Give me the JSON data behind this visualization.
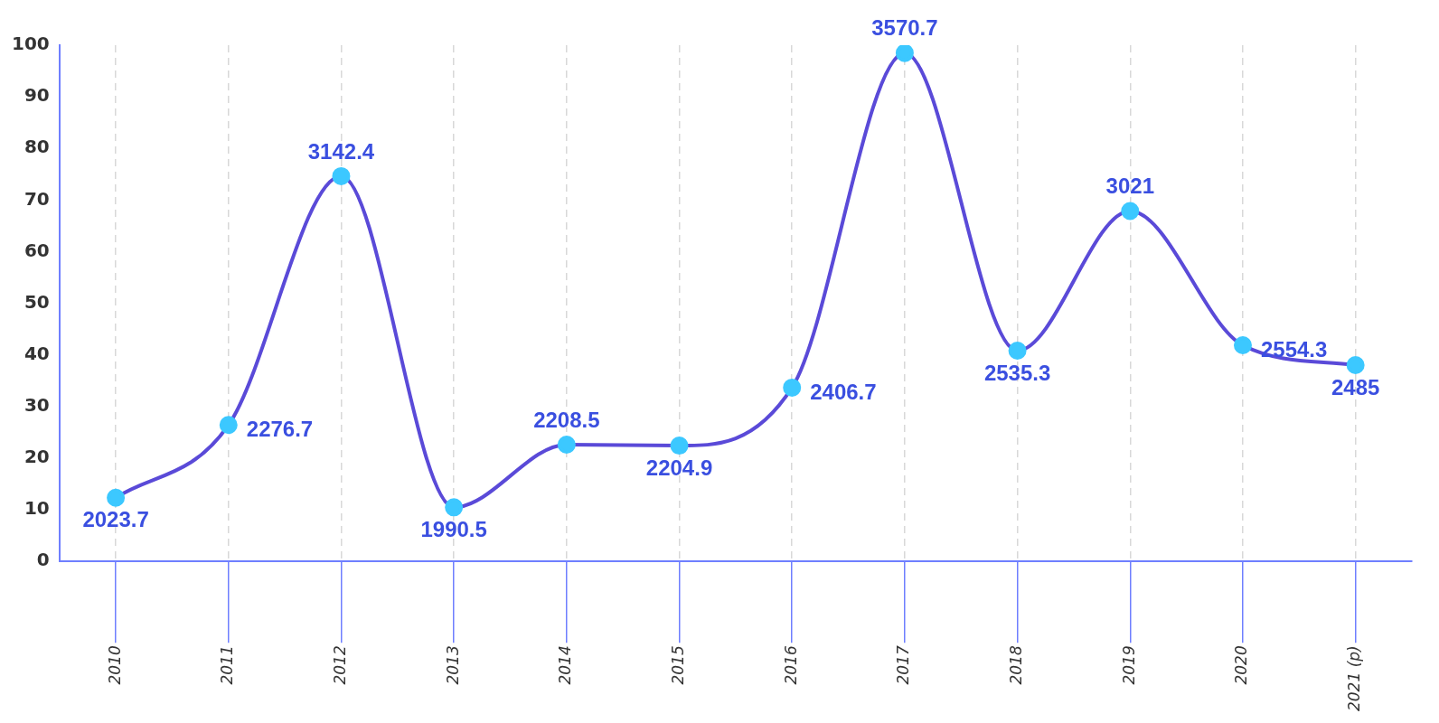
{
  "chart_data": {
    "type": "line",
    "categories": [
      "2010",
      "2011",
      "2012",
      "2013",
      "2014",
      "2015",
      "2016",
      "2017",
      "2018",
      "2019",
      "2020",
      "2021 (p)"
    ],
    "series": [
      {
        "color": "#5a4ad8",
        "colors": [
          "#3cc8ff",
          "#3cc8ff",
          "#3cc8ff",
          "#3cc8ff",
          "#3cc8ff",
          "#3cc8ff",
          "#3cc8ff",
          "#3cc8ff",
          "#3cc8ff",
          "#3cc8ff",
          "#3cc8ff",
          "#3cc8ff"
        ],
        "values": [
          2023.7,
          2276.7,
          3142.4,
          1990.5,
          2208.5,
          2204.9,
          2406.7,
          3570.7,
          2535.3,
          3021,
          2554.3,
          2485
        ]
      }
    ],
    "data_labels": true,
    "ylim": [
      1802,
      3598
    ],
    "y2lim": [
      0,
      100
    ],
    "y2ticks": [
      0,
      10,
      20,
      30,
      40,
      50,
      60,
      70,
      80,
      90,
      100
    ],
    "grid": "x",
    "marker": "circle",
    "legend": false
  }
}
